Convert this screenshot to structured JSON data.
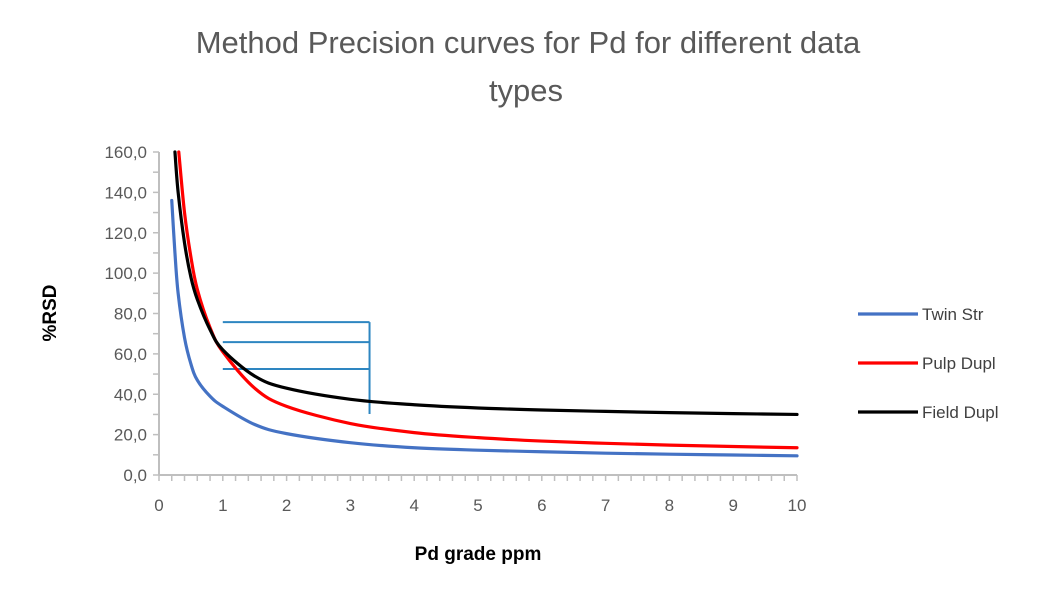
{
  "chart_data": {
    "type": "line",
    "title": "Method Precision curves for Pd for different data types",
    "title_lines": [
      "Method Precision curves for Pd for different data",
      "types"
    ],
    "xlabel": "Pd grade ppm",
    "ylabel": "%RSD",
    "xlim": [
      0,
      10
    ],
    "ylim": [
      0,
      160
    ],
    "x_ticks": [
      "0",
      "1",
      "2",
      "3",
      "4",
      "5",
      "6",
      "7",
      "8",
      "9",
      "10"
    ],
    "y_ticks": [
      "0,0",
      "20,0",
      "40,0",
      "60,0",
      "80,0",
      "100,0",
      "120,0",
      "140,0",
      "160,0"
    ],
    "grid": false,
    "legend_position": "right",
    "series": [
      {
        "name": "Twin Str",
        "color": "#4472C4",
        "x": [
          0.2,
          0.25,
          0.3,
          0.4,
          0.5,
          0.6,
          0.8,
          1,
          1.5,
          2,
          3,
          4,
          5,
          6,
          7,
          8,
          9,
          10
        ],
        "y": [
          136,
          110,
          90,
          68,
          55,
          47,
          39,
          34,
          25,
          20.5,
          16,
          13.5,
          12.3,
          11.5,
          10.8,
          10.3,
          9.9,
          9.5
        ]
      },
      {
        "name": "Pulp Dupl",
        "color": "#FF0000",
        "x": [
          0.31,
          0.4,
          0.5,
          0.6,
          0.8,
          1,
          1.5,
          2,
          3,
          4,
          5,
          6,
          7,
          8,
          9,
          10
        ],
        "y": [
          160,
          130,
          108,
          92,
          73,
          61,
          43,
          34,
          25.5,
          21,
          18.5,
          16.8,
          15.7,
          14.8,
          14.1,
          13.5
        ]
      },
      {
        "name": "Field Dupl",
        "color": "#000000",
        "x": [
          0.25,
          0.3,
          0.4,
          0.5,
          0.6,
          0.8,
          1,
          1.5,
          2,
          3,
          4,
          5,
          6,
          7,
          8,
          9,
          10
        ],
        "y": [
          160,
          140,
          115,
          98,
          87,
          72,
          62,
          49,
          43,
          37.5,
          34.8,
          33.2,
          32.2,
          31.5,
          30.9,
          30.4,
          30
        ]
      }
    ],
    "annotations": {
      "color": "#2E86C1",
      "horizontal_lines": [
        {
          "y": 75.7,
          "x_from": 1,
          "x_to": 3.3
        },
        {
          "y": 65.8,
          "x_from": 1,
          "x_to": 3.3
        },
        {
          "y": 52.5,
          "x_from": 1,
          "x_to": 3.3
        }
      ],
      "vertical_line": {
        "x": 3.3,
        "y_from": 75.7,
        "y_to": 30.2
      }
    }
  }
}
